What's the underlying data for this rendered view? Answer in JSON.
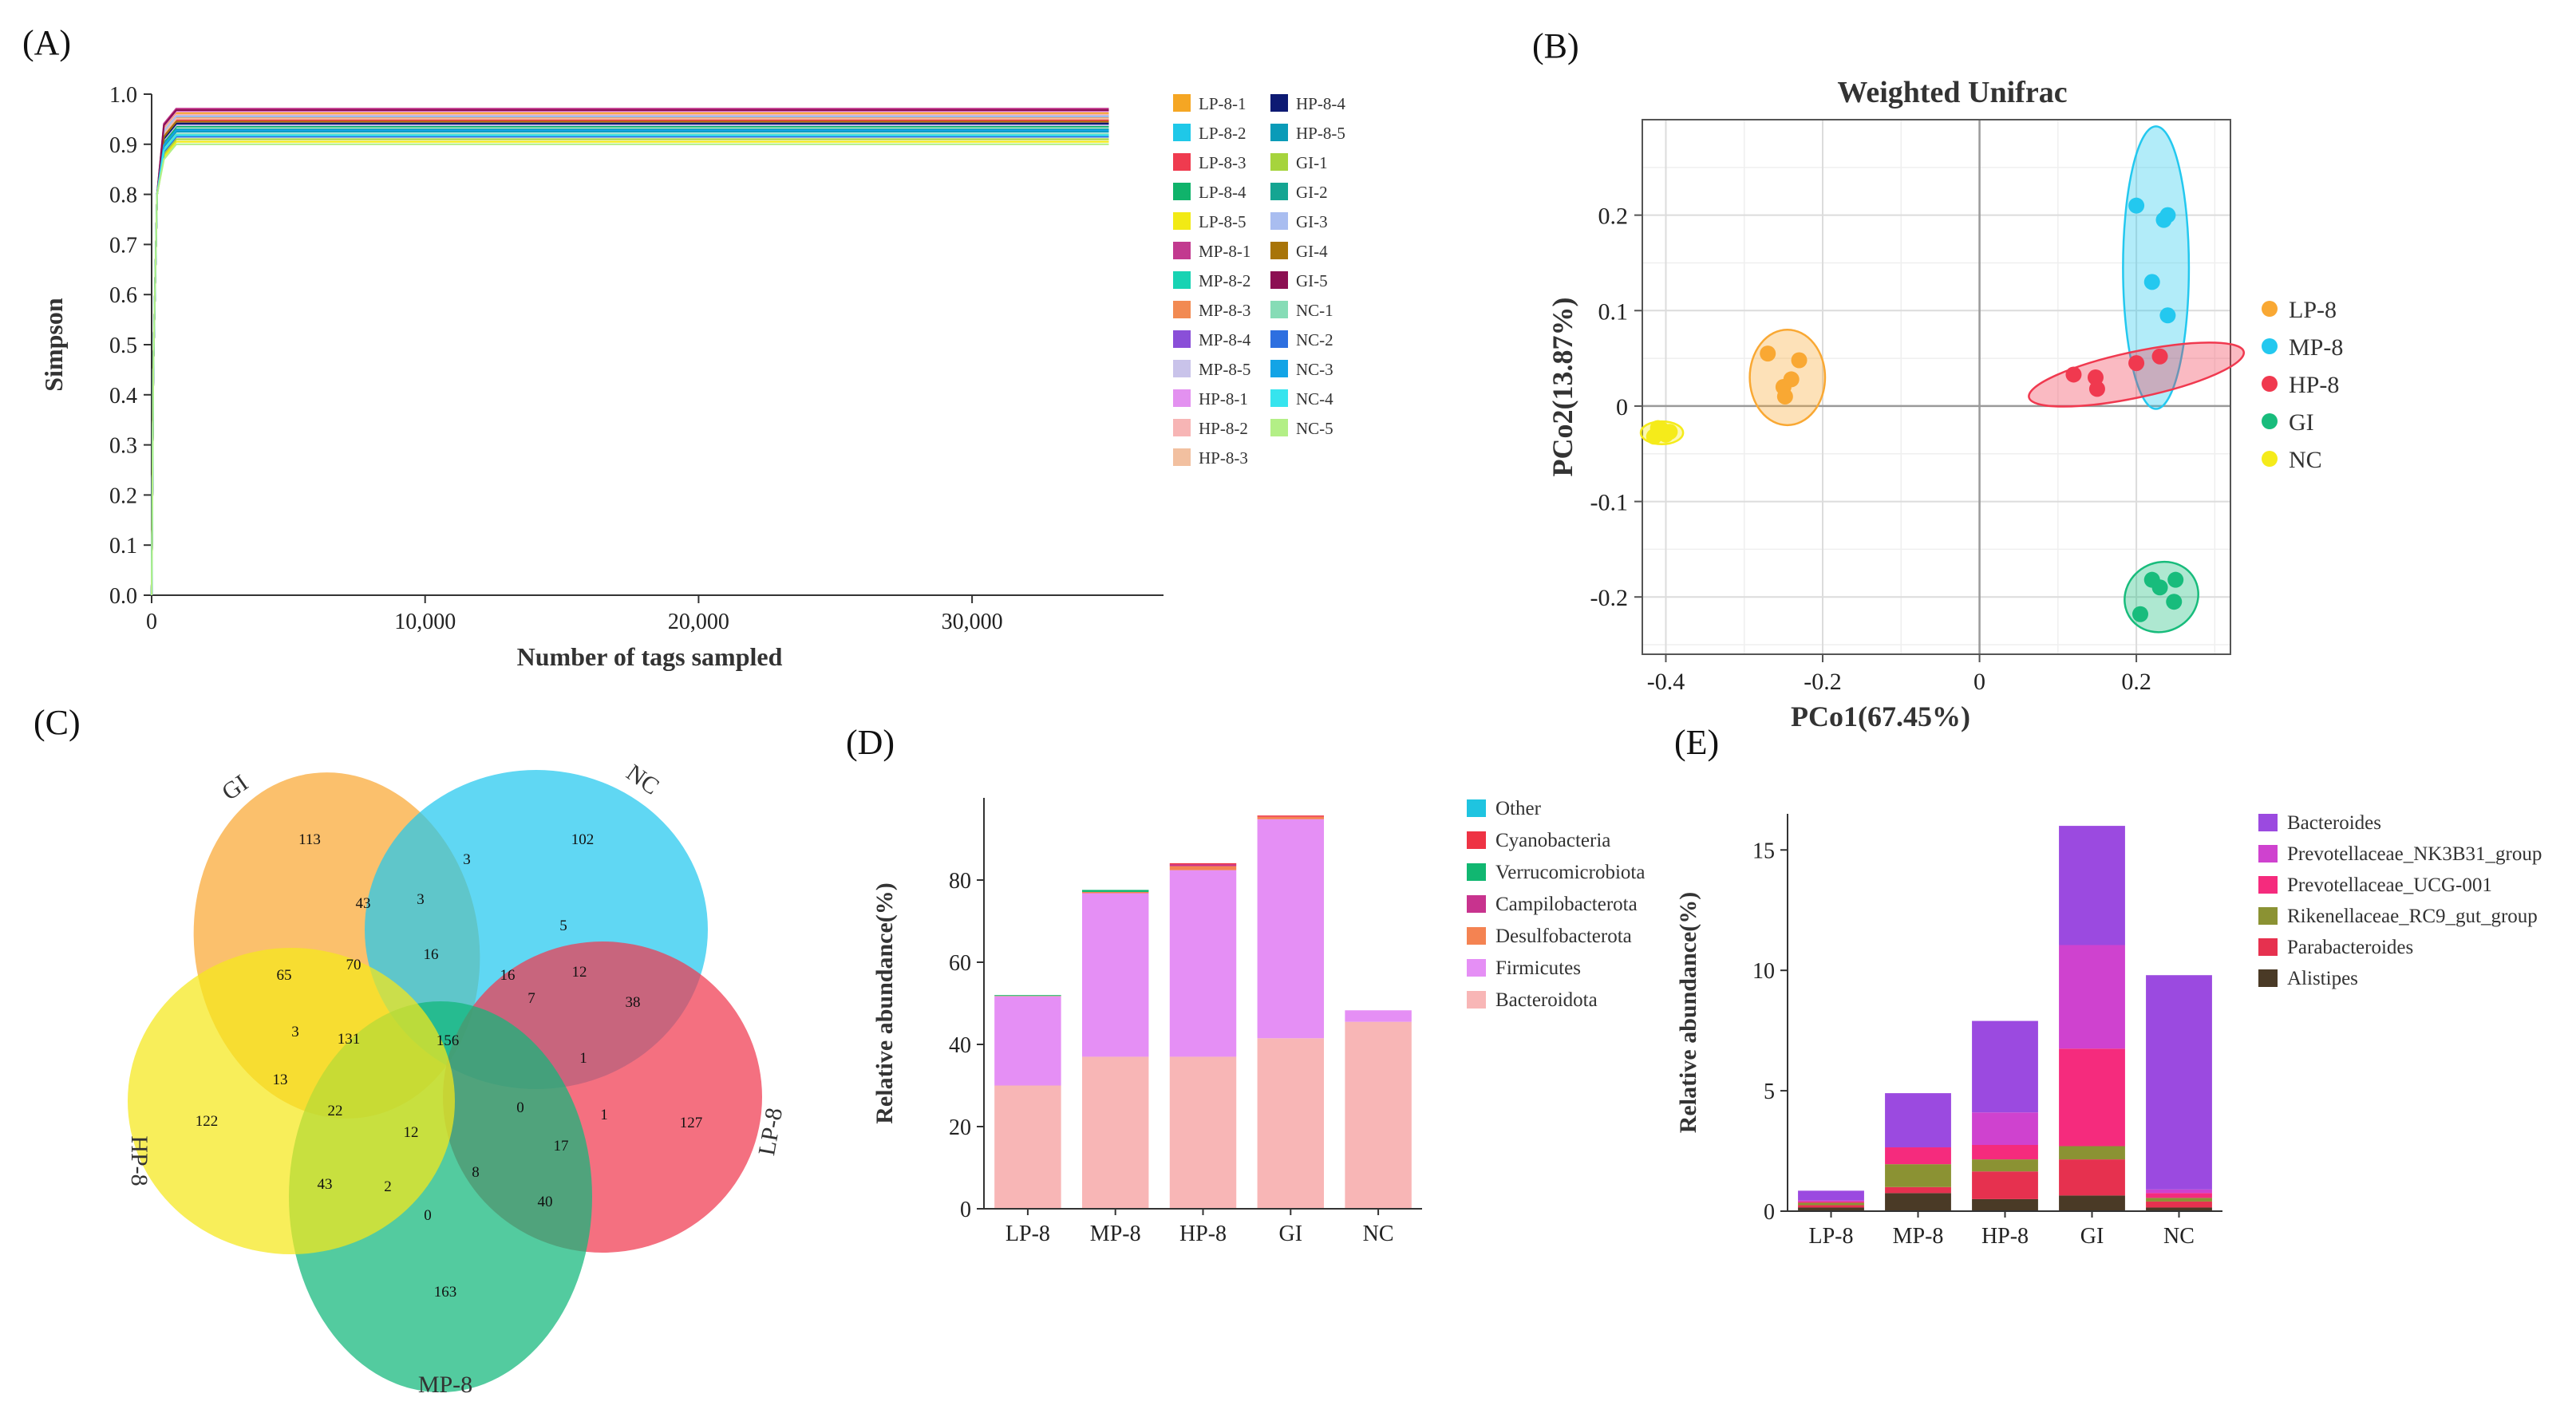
{
  "panel_labels": [
    "(A)",
    "(B)",
    "(C)",
    "(D)",
    "(E)"
  ],
  "chart_data": [
    {
      "id": "A",
      "type": "line",
      "xlabel": "Number of tags sampled",
      "ylabel": "Simpson",
      "xlim": [
        0,
        37000
      ],
      "ylim": [
        0.0,
        1.0
      ],
      "xticks": [
        0,
        10000,
        20000,
        30000
      ],
      "xtick_labels": [
        "0",
        "10,000",
        "20,000",
        "30,000"
      ],
      "yticks": [
        0.0,
        0.1,
        0.2,
        0.3,
        0.4,
        0.5,
        0.6,
        0.7,
        0.8,
        0.9,
        1.0
      ],
      "ytick_labels": [
        "0.0",
        "0.1",
        "0.2",
        "0.3",
        "0.4",
        "0.5",
        "0.6",
        "0.7",
        "0.8",
        "0.9",
        "1.0"
      ],
      "curve_x_end": 35000,
      "legend_columns": 2,
      "series": [
        {
          "name": "LP-8-1",
          "color": "#f5a623",
          "plateau": 0.962
        },
        {
          "name": "LP-8-2",
          "color": "#1fc8e8",
          "plateau": 0.955
        },
        {
          "name": "LP-8-3",
          "color": "#ef3b4f",
          "plateau": 0.948
        },
        {
          "name": "LP-8-4",
          "color": "#10b36b",
          "plateau": 0.935
        },
        {
          "name": "LP-8-5",
          "color": "#f2ea15",
          "plateau": 0.905
        },
        {
          "name": "MP-8-1",
          "color": "#c23a8f",
          "plateau": 0.971
        },
        {
          "name": "MP-8-2",
          "color": "#18d3b3",
          "plateau": 0.958
        },
        {
          "name": "MP-8-3",
          "color": "#f28a52",
          "plateau": 0.952
        },
        {
          "name": "MP-8-4",
          "color": "#8a4fd8",
          "plateau": 0.944
        },
        {
          "name": "MP-8-5",
          "color": "#c9c3ea",
          "plateau": 0.938
        },
        {
          "name": "HP-8-1",
          "color": "#e391f0",
          "plateau": 0.966
        },
        {
          "name": "HP-8-2",
          "color": "#f7b5b5",
          "plateau": 0.959
        },
        {
          "name": "HP-8-3",
          "color": "#f2c0a0",
          "plateau": 0.951
        },
        {
          "name": "HP-8-4",
          "color": "#0d1a73",
          "plateau": 0.941
        },
        {
          "name": "HP-8-5",
          "color": "#0a9bb8",
          "plateau": 0.925
        },
        {
          "name": "GI-1",
          "color": "#a6d43d",
          "plateau": 0.91
        },
        {
          "name": "GI-2",
          "color": "#14a592",
          "plateau": 0.93
        },
        {
          "name": "GI-3",
          "color": "#a9bdf0",
          "plateau": 0.956
        },
        {
          "name": "GI-4",
          "color": "#a87408",
          "plateau": 0.945
        },
        {
          "name": "GI-5",
          "color": "#8c0f52",
          "plateau": 0.968
        },
        {
          "name": "NC-1",
          "color": "#86dcb6",
          "plateau": 0.92
        },
        {
          "name": "NC-2",
          "color": "#2d6fe0",
          "plateau": 0.915
        },
        {
          "name": "NC-3",
          "color": "#13a4e6",
          "plateau": 0.928
        },
        {
          "name": "NC-4",
          "color": "#36e4ee",
          "plateau": 0.918
        },
        {
          "name": "NC-5",
          "color": "#b3ef86",
          "plateau": 0.9
        }
      ]
    },
    {
      "id": "B",
      "type": "scatter",
      "title": "Weighted Unifrac",
      "xlabel": "PCo1(67.45%)",
      "ylabel": "PCo2(13.87%)",
      "xlim": [
        -0.43,
        0.32
      ],
      "ylim": [
        -0.26,
        0.3
      ],
      "xticks": [
        -0.4,
        -0.2,
        0.0,
        0.2
      ],
      "xtick_labels": [
        "-0.4",
        "-0.2",
        "0",
        "0.2"
      ],
      "yticks": [
        -0.2,
        -0.1,
        0.0,
        0.1,
        0.2
      ],
      "ytick_labels": [
        "-0.2",
        "-0.1",
        "0",
        "0.1",
        "0.2"
      ],
      "legend_position": "right",
      "series": [
        {
          "name": "LP-8",
          "color": "#f9a833",
          "ellipse": {
            "cx": -0.245,
            "cy": 0.03,
            "rx": 0.048,
            "ry": 0.05,
            "angle": 0
          },
          "points": [
            [
              -0.27,
              0.055
            ],
            [
              -0.23,
              0.048
            ],
            [
              -0.24,
              0.028
            ],
            [
              -0.25,
              0.02
            ],
            [
              -0.248,
              0.01
            ]
          ]
        },
        {
          "name": "MP-8",
          "color": "#23c8ef",
          "ellipse": {
            "cx": 0.225,
            "cy": 0.145,
            "rx": 0.042,
            "ry": 0.148,
            "angle": 0
          },
          "points": [
            [
              0.2,
              0.21
            ],
            [
              0.24,
              0.2
            ],
            [
              0.235,
              0.195
            ],
            [
              0.22,
              0.13
            ],
            [
              0.24,
              0.095
            ]
          ]
        },
        {
          "name": "HP-8",
          "color": "#f0394f",
          "ellipse": {
            "cx": 0.2,
            "cy": 0.033,
            "rx": 0.14,
            "ry": 0.024,
            "angle": -12
          },
          "points": [
            [
              0.12,
              0.033
            ],
            [
              0.148,
              0.03
            ],
            [
              0.15,
              0.018
            ],
            [
              0.2,
              0.045
            ],
            [
              0.23,
              0.052
            ]
          ]
        },
        {
          "name": "GI",
          "color": "#18bc7c",
          "ellipse": {
            "cx": 0.232,
            "cy": -0.2,
            "rx": 0.048,
            "ry": 0.036,
            "angle": -30
          },
          "points": [
            [
              0.22,
              -0.182
            ],
            [
              0.25,
              -0.182
            ],
            [
              0.248,
              -0.205
            ],
            [
              0.205,
              -0.218
            ],
            [
              0.23,
              -0.19
            ]
          ]
        },
        {
          "name": "NC",
          "color": "#f5eb1a",
          "ellipse": {
            "cx": -0.405,
            "cy": -0.028,
            "rx": 0.027,
            "ry": 0.012,
            "angle": 0
          },
          "points": [
            [
              -0.41,
              -0.023
            ],
            [
              -0.4,
              -0.03
            ],
            [
              -0.395,
              -0.027
            ],
            [
              -0.415,
              -0.032
            ],
            [
              -0.405,
              -0.025
            ]
          ]
        }
      ]
    },
    {
      "id": "C",
      "type": "venn",
      "sets": [
        {
          "name": "GI",
          "color": "#f9a833"
        },
        {
          "name": "NC",
          "color": "#23c8ef"
        },
        {
          "name": "LP-8",
          "color": "#f0394f"
        },
        {
          "name": "MP-8",
          "color": "#10b77a"
        },
        {
          "name": "HP-8",
          "color": "#f5e81a"
        }
      ],
      "counts": [
        113,
        3,
        102,
        43,
        3,
        16,
        5,
        70,
        16,
        65,
        7,
        12,
        38,
        3,
        131,
        156,
        13,
        1,
        122,
        22,
        12,
        0,
        17,
        1,
        127,
        43,
        2,
        8,
        40,
        0,
        163
      ]
    },
    {
      "id": "D",
      "type": "bar",
      "stacked": true,
      "ylabel": "Relative abundance(%)",
      "ylim": [
        0,
        100
      ],
      "yticks": [
        0,
        20,
        40,
        60,
        80
      ],
      "categories": [
        "LP-8",
        "MP-8",
        "HP-8",
        "GI",
        "NC"
      ],
      "legend_position": "right",
      "series": [
        {
          "name": "Bacteroidota",
          "color": "#f8b6b6",
          "values": [
            30,
            37,
            37,
            41.5,
            45.5
          ]
        },
        {
          "name": "Firmicutes",
          "color": "#e58ff5",
          "values": [
            21.7,
            39.8,
            45.4,
            53.3,
            2.8
          ]
        },
        {
          "name": "Desulfobacterota",
          "color": "#f48352",
          "values": [
            0.1,
            0.3,
            1.0,
            0.6,
            0
          ]
        },
        {
          "name": "Campilobacterota",
          "color": "#c8338e",
          "values": [
            0,
            0,
            0.4,
            0,
            0
          ]
        },
        {
          "name": "Verrucomicrobiota",
          "color": "#11b771",
          "values": [
            0.2,
            0.5,
            0,
            0,
            0
          ]
        },
        {
          "name": "Cyanobacteria",
          "color": "#ee3344",
          "values": [
            0,
            0,
            0.3,
            0.3,
            0
          ]
        },
        {
          "name": "Other",
          "color": "#1fc4e0",
          "values": [
            0,
            0,
            0,
            0,
            0
          ]
        }
      ]
    },
    {
      "id": "E",
      "type": "bar",
      "stacked": true,
      "ylabel": "Relative abundance(%)",
      "ylim": [
        0,
        16.5
      ],
      "yticks": [
        0,
        5,
        10,
        15
      ],
      "categories": [
        "LP-8",
        "MP-8",
        "HP-8",
        "GI",
        "NC"
      ],
      "legend_position": "right",
      "series": [
        {
          "name": "Alistipes",
          "color": "#4a3a26",
          "values": [
            0.15,
            0.75,
            0.5,
            0.65,
            0.15
          ]
        },
        {
          "name": "Parabacteroides",
          "color": "#e6314f",
          "values": [
            0.1,
            0.25,
            1.15,
            1.5,
            0.25
          ]
        },
        {
          "name": "Rikenellaceae_RC9_gut_group",
          "color": "#8b9233",
          "values": [
            0.1,
            0.95,
            0.5,
            0.55,
            0.15
          ]
        },
        {
          "name": "Prevotellaceae_UCG-001",
          "color": "#f52b7d",
          "values": [
            0.05,
            0.7,
            0.6,
            4.05,
            0.2
          ]
        },
        {
          "name": "Prevotellaceae_NK3B31_group",
          "color": "#cf42cf",
          "values": [
            0.05,
            0,
            1.35,
            4.3,
            0.15
          ]
        },
        {
          "name": "Bacteroides",
          "color": "#9b4ae0",
          "values": [
            0.4,
            2.25,
            3.8,
            4.95,
            8.9
          ]
        }
      ]
    }
  ]
}
